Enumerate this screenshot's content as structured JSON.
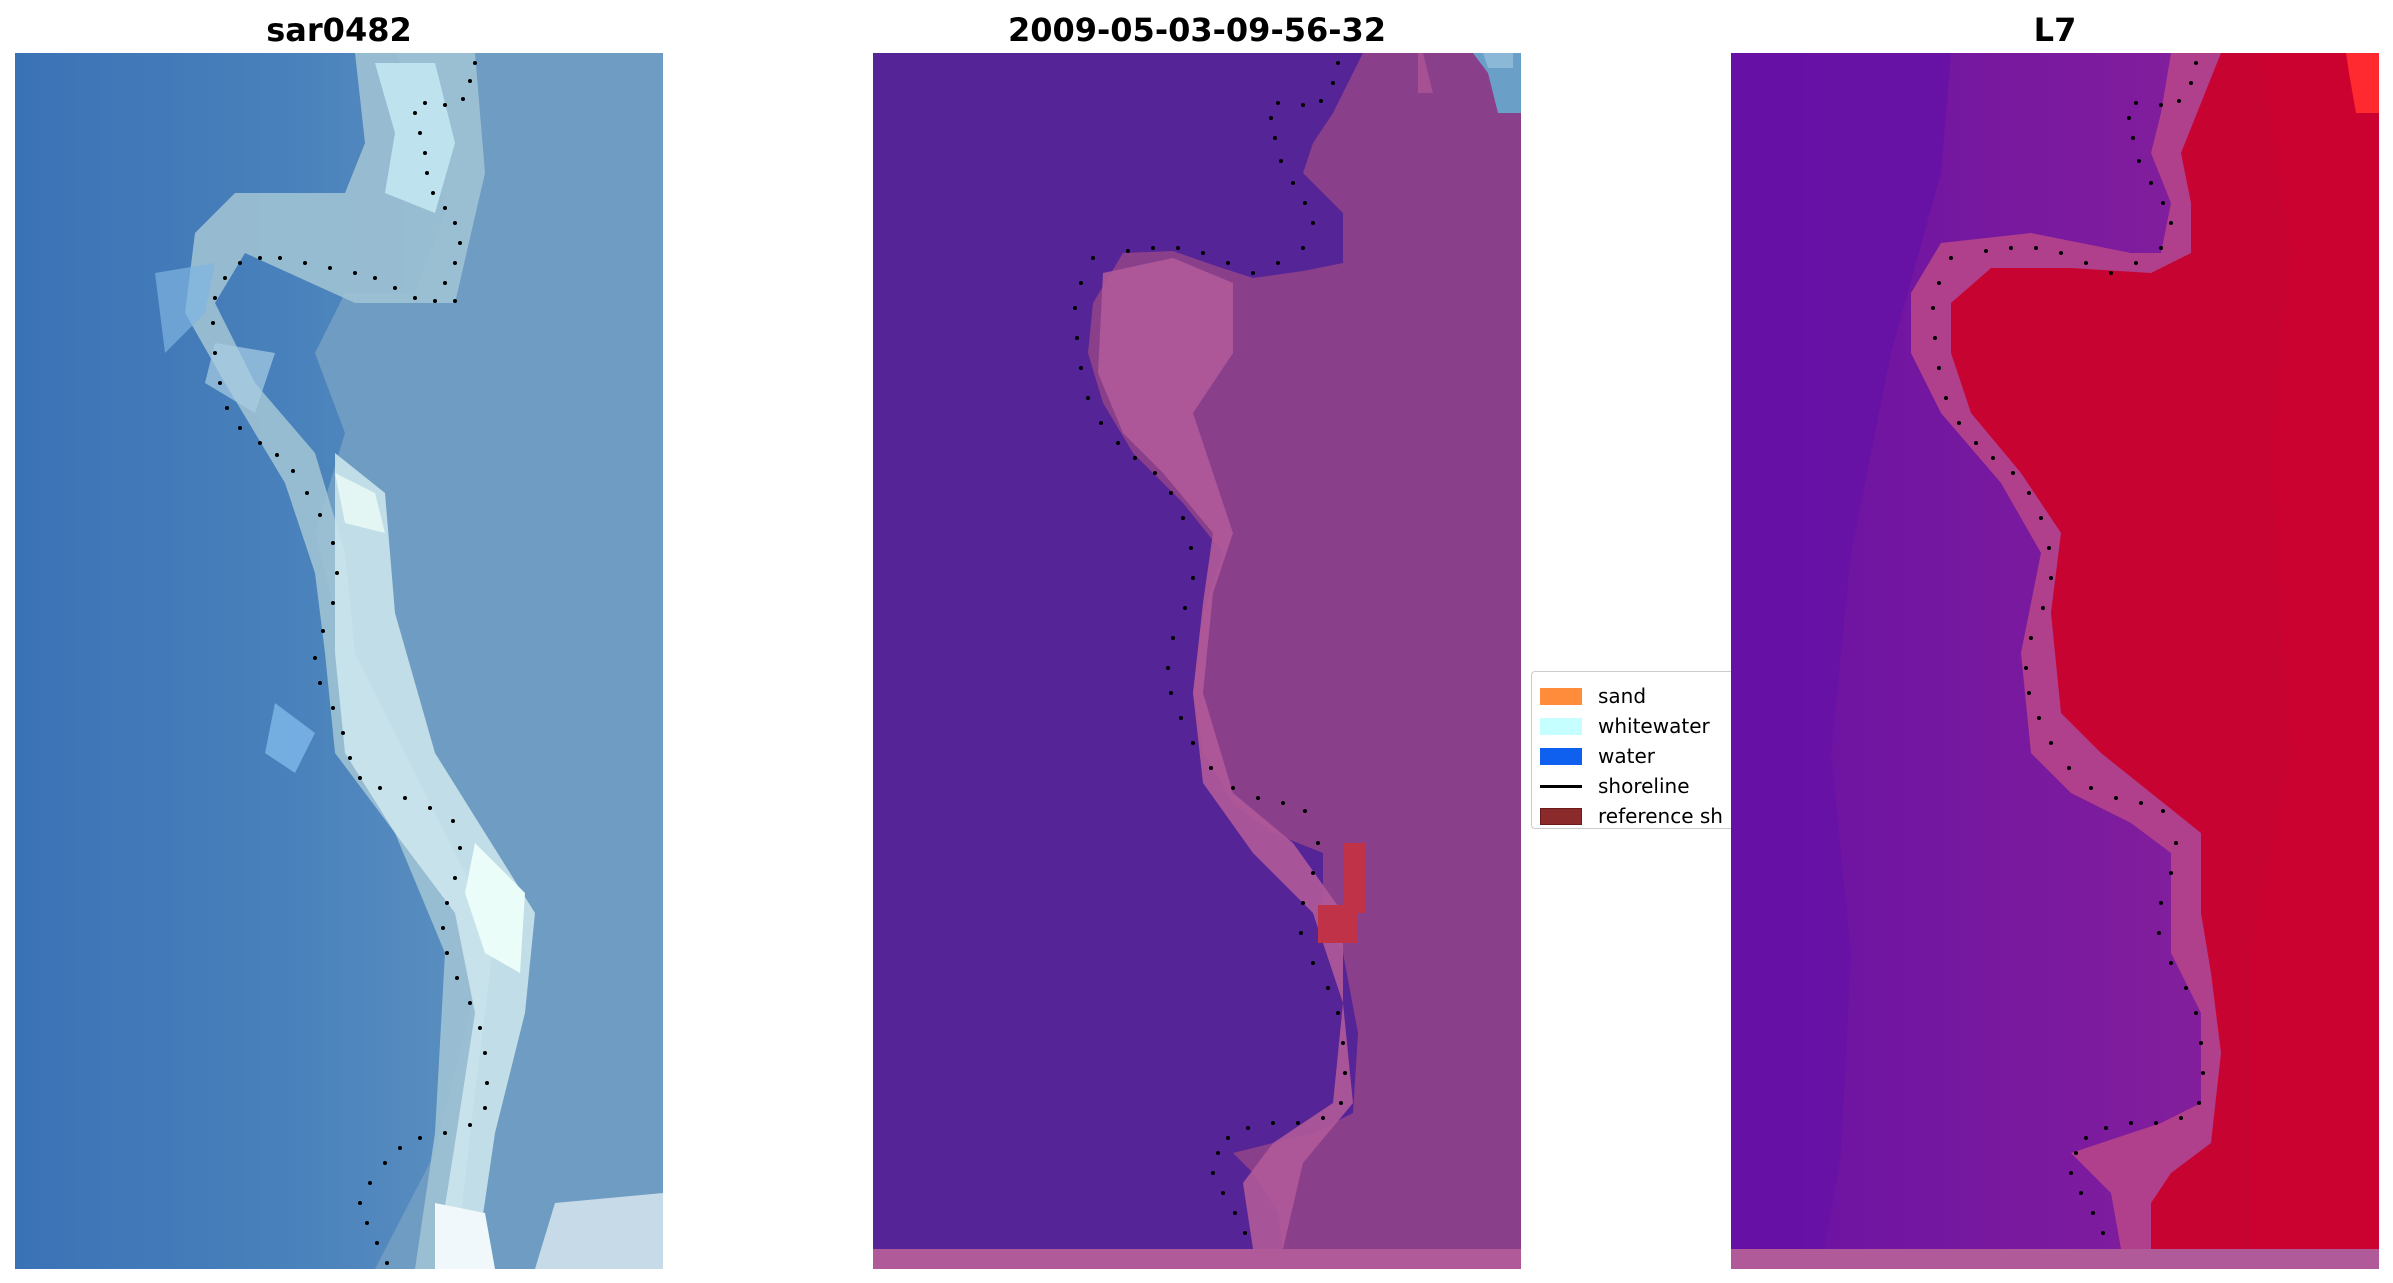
{
  "panels": {
    "rgb_title": "sar0482",
    "class_title": "2009-05-03-09-56-32",
    "mndwi_title": "L7"
  },
  "legend": {
    "items": [
      {
        "label": "sand",
        "color": "#ff8c3a",
        "kind": "patch"
      },
      {
        "label": "whitewater",
        "color": "#c6ffff",
        "kind": "patch"
      },
      {
        "label": "water",
        "color": "#1060f0",
        "kind": "patch"
      },
      {
        "label": "shoreline",
        "color": "#000000",
        "kind": "line"
      },
      {
        "label": "reference sh",
        "color": "#8b2a2a",
        "kind": "patch"
      }
    ]
  },
  "colors": {
    "rgb_water": "#3f78b8",
    "rgb_surf": "#8fb8cc",
    "rgb_white": "#e6fbf7",
    "class_water": "#552496",
    "class_land": "#8a3f8a",
    "class_pink": "#b05a99",
    "class_red": "#c03248",
    "mndwi_purple": "#6a12a4",
    "mndwi_red": "#c8002c",
    "shoreline_dots": "#000000"
  }
}
